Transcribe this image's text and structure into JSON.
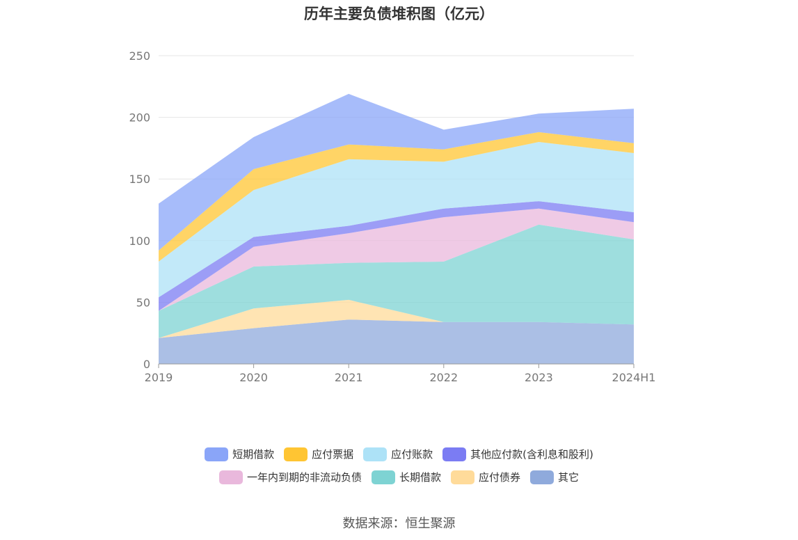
{
  "chart_data": {
    "type": "area",
    "stacked": true,
    "title": "历年主要负债堆积图（亿元）",
    "categories": [
      "2019",
      "2020",
      "2021",
      "2022",
      "2023",
      "2024H1"
    ],
    "ylim": [
      0,
      250
    ],
    "yticks": [
      0,
      50,
      100,
      150,
      200,
      250
    ],
    "grid": true,
    "legend_position": "bottom",
    "series": [
      {
        "name": "其它",
        "color": "#8FAADC",
        "values": [
          21,
          29,
          36,
          34,
          34,
          32
        ]
      },
      {
        "name": "应付债券",
        "color": "#FFDB9A",
        "values": [
          0,
          16,
          16,
          0,
          0,
          0
        ]
      },
      {
        "name": "长期借款",
        "color": "#7ED3D3",
        "values": [
          22,
          34,
          30,
          49,
          79,
          69
        ]
      },
      {
        "name": "一年内到期的非流动负债",
        "color": "#E9B8DC",
        "values": [
          0,
          16,
          24,
          36,
          13,
          14
        ]
      },
      {
        "name": "其他应付款(含利息和股利)",
        "color": "#7B7CF3",
        "values": [
          11,
          8,
          6,
          7,
          6,
          8
        ]
      },
      {
        "name": "应付账款",
        "color": "#ADE2F7",
        "values": [
          29,
          38,
          54,
          38,
          48,
          48
        ]
      },
      {
        "name": "应付票据",
        "color": "#FFC533",
        "values": [
          9,
          17,
          12,
          10,
          8,
          8
        ]
      },
      {
        "name": "短期借款",
        "color": "#8AA5F8",
        "values": [
          38,
          26,
          41,
          16,
          15,
          28
        ]
      }
    ]
  },
  "legend": {
    "row1": [
      {
        "label": "短期借款",
        "color": "#8AA5F8"
      },
      {
        "label": "应付票据",
        "color": "#FFC533"
      },
      {
        "label": "应付账款",
        "color": "#ADE2F7"
      },
      {
        "label": "其他应付款(含利息和股利)",
        "color": "#7B7CF3"
      }
    ],
    "row2": [
      {
        "label": "一年内到期的非流动负债",
        "color": "#E9B8DC"
      },
      {
        "label": "长期借款",
        "color": "#7ED3D3"
      },
      {
        "label": "应付债券",
        "color": "#FFDB9A"
      },
      {
        "label": "其它",
        "color": "#8FAADC"
      }
    ]
  },
  "source": "数据来源：恒生聚源"
}
